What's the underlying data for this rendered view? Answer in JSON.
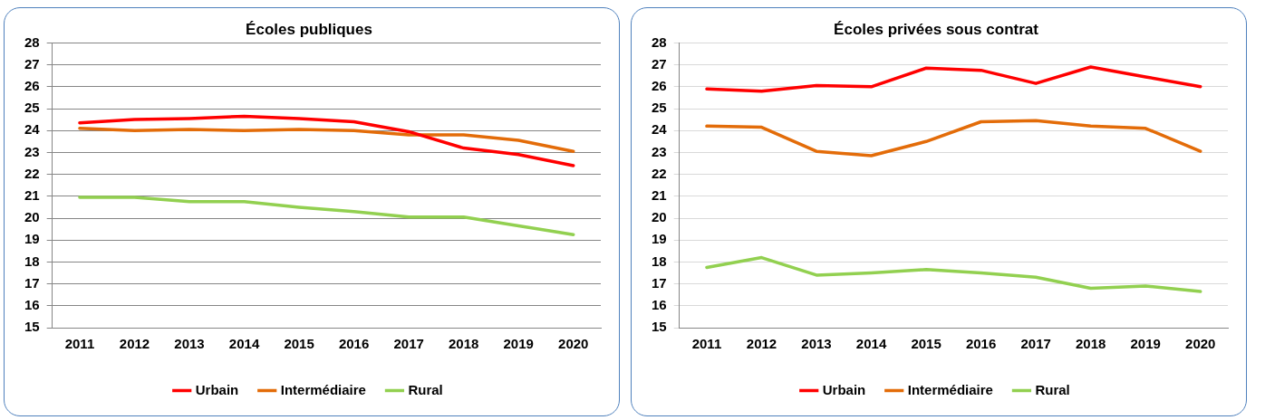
{
  "chart_data": [
    {
      "type": "line",
      "title": "Écoles publiques",
      "categories": [
        "2011",
        "2012",
        "2013",
        "2014",
        "2015",
        "2016",
        "2017",
        "2018",
        "2019",
        "2020"
      ],
      "series": [
        {
          "name": "Urbain",
          "color": "#ff0000",
          "values": [
            24.35,
            24.5,
            24.55,
            24.65,
            24.55,
            24.4,
            23.95,
            23.2,
            22.9,
            22.4
          ]
        },
        {
          "name": "Intermédiaire",
          "color": "#e36c09",
          "values": [
            24.1,
            24.0,
            24.05,
            24.0,
            24.05,
            24.0,
            23.8,
            23.8,
            23.55,
            23.05
          ]
        },
        {
          "name": "Rural",
          "color": "#92d050",
          "values": [
            20.95,
            20.95,
            20.75,
            20.75,
            20.5,
            20.3,
            20.05,
            20.05,
            19.65,
            19.25
          ]
        }
      ],
      "ylim": [
        15,
        28
      ],
      "yticks": [
        15,
        16,
        17,
        18,
        19,
        20,
        21,
        22,
        23,
        24,
        25,
        26,
        27,
        28
      ],
      "grid": "y",
      "legend": "bottom",
      "marker": "none",
      "line_style": "solid"
    },
    {
      "type": "line",
      "title": "Écoles privées sous contrat",
      "categories": [
        "2011",
        "2012",
        "2013",
        "2014",
        "2015",
        "2016",
        "2017",
        "2018",
        "2019",
        "2020"
      ],
      "series": [
        {
          "name": "Urbain",
          "color": "#ff0000",
          "values": [
            25.9,
            25.8,
            26.05,
            26.0,
            26.85,
            26.75,
            26.15,
            26.9,
            26.45,
            26.0
          ]
        },
        {
          "name": "Intermédiaire",
          "color": "#e36c09",
          "values": [
            24.2,
            24.15,
            23.05,
            22.85,
            23.5,
            24.4,
            24.45,
            24.2,
            24.1,
            23.05
          ]
        },
        {
          "name": "Rural",
          "color": "#92d050",
          "values": [
            17.75,
            18.2,
            17.4,
            17.5,
            17.65,
            17.5,
            17.3,
            16.8,
            16.9,
            16.65
          ]
        }
      ],
      "ylim": [
        15,
        28
      ],
      "yticks": [
        15,
        16,
        17,
        18,
        19,
        20,
        21,
        22,
        23,
        24,
        25,
        26,
        27,
        28
      ],
      "grid": "y",
      "legend": "bottom",
      "marker": "none",
      "line_style": "solid"
    }
  ]
}
